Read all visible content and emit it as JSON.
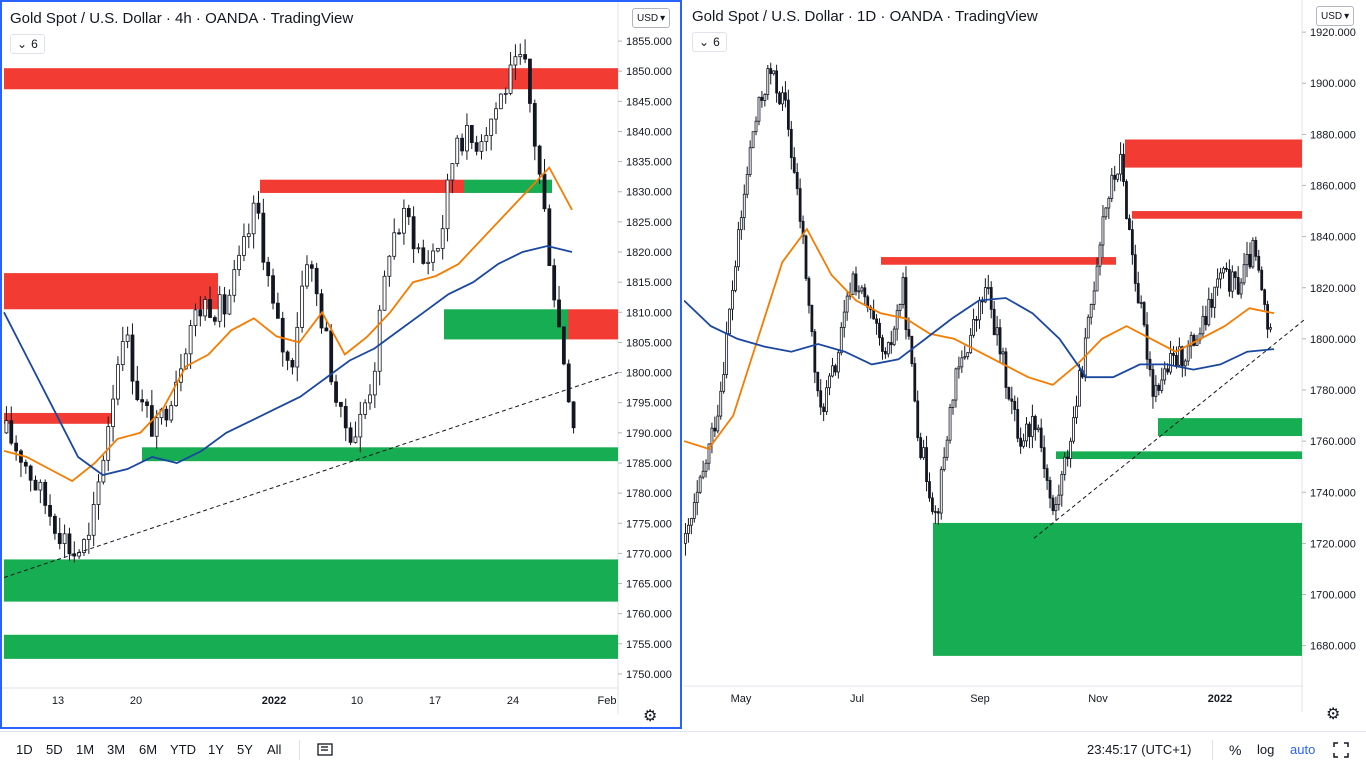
{
  "charts": [
    {
      "title": "Gold Spot / U.S. Dollar · 4h · OANDA · TradingView",
      "legend_badge": "6",
      "currency": "USD",
      "chart_data": {
        "type": "candlestick",
        "ylim": [
          1748,
          1857
        ],
        "y_ticks": [
          1750,
          1755,
          1760,
          1765,
          1770,
          1775,
          1780,
          1785,
          1790,
          1795,
          1800,
          1805,
          1810,
          1815,
          1820,
          1825,
          1830,
          1835,
          1840,
          1845,
          1850,
          1855
        ],
        "x_ticks": [
          "13",
          "20",
          "2022",
          "10",
          "17",
          "24",
          "Feb"
        ],
        "zones": [
          {
            "kind": "supply",
            "y0": 1847,
            "y1": 1850.5
          },
          {
            "kind": "supply",
            "y0": 1829.8,
            "y1": 1832
          },
          {
            "kind": "demand",
            "y0": 1829.8,
            "y1": 1832
          },
          {
            "kind": "supply",
            "y0": 1810.5,
            "y1": 1816.5
          },
          {
            "kind": "supply",
            "y0": 1805.5,
            "y1": 1810.5
          },
          {
            "kind": "demand",
            "y0": 1805.5,
            "y1": 1810.5
          },
          {
            "kind": "supply",
            "y0": 1791.5,
            "y1": 1793.3
          },
          {
            "kind": "demand",
            "y0": 1785.3,
            "y1": 1787.6
          },
          {
            "kind": "demand",
            "y0": 1762,
            "y1": 1769
          },
          {
            "kind": "demand",
            "y0": 1752.5,
            "y1": 1756.5
          }
        ],
        "lines": [
          {
            "name": "",
            "color": "#f57c00",
            "values": [
              1787,
              1786,
              1784,
              1782,
              1785,
              1789,
              1790,
              1794,
              1801,
              1803,
              1807,
              1809,
              1806,
              1805,
              1810,
              1803,
              1806,
              1810,
              1815,
              1816,
              1818,
              1822,
              1826,
              1830,
              1834,
              1827
            ]
          },
          {
            "name": "",
            "color": "#1a47a0",
            "values": [
              1810,
              1802,
              1794,
              1786,
              1783,
              1784,
              1786,
              1785,
              1787,
              1790,
              1792,
              1794,
              1796,
              1799,
              1802,
              1804,
              1807,
              1810,
              1813,
              1815,
              1818,
              1820,
              1821,
              1820
            ]
          }
        ]
      }
    },
    {
      "title": "Gold Spot / U.S. Dollar · 1D · OANDA · TradingView",
      "legend_badge": "6",
      "currency": "USD",
      "chart_data": {
        "type": "candlestick",
        "ylim": [
          1665,
          1922
        ],
        "y_ticks": [
          1680,
          1700,
          1720,
          1740,
          1760,
          1780,
          1800,
          1820,
          1840,
          1860,
          1880,
          1900,
          1920
        ],
        "x_ticks": [
          "May",
          "Jul",
          "Sep",
          "Nov",
          "2022"
        ],
        "zones": [
          {
            "kind": "supply",
            "y0": 1867,
            "y1": 1878
          },
          {
            "kind": "supply",
            "y0": 1847,
            "y1": 1850
          },
          {
            "kind": "supply",
            "y0": 1829,
            "y1": 1832
          },
          {
            "kind": "demand",
            "y0": 1762,
            "y1": 1769
          },
          {
            "kind": "demand",
            "y0": 1753,
            "y1": 1756
          },
          {
            "kind": "demand",
            "y0": 1676,
            "y1": 1728
          }
        ],
        "lines": [
          {
            "name": "",
            "color": "#f57c00",
            "values": [
              1760,
              1757,
              1770,
              1800,
              1830,
              1843,
              1825,
              1815,
              1810,
              1808,
              1802,
              1800,
              1795,
              1790,
              1785,
              1782,
              1790,
              1800,
              1805,
              1800,
              1795,
              1800,
              1805,
              1812,
              1810
            ]
          },
          {
            "name": "",
            "color": "#1a47a0",
            "values": [
              1815,
              1805,
              1800,
              1797,
              1795,
              1798,
              1795,
              1790,
              1792,
              1800,
              1808,
              1815,
              1816,
              1810,
              1800,
              1785,
              1785,
              1790,
              1790,
              1788,
              1790,
              1795,
              1796
            ]
          }
        ]
      }
    }
  ],
  "toolbar": {
    "ranges": [
      "1D",
      "5D",
      "1M",
      "3M",
      "6M",
      "YTD",
      "1Y",
      "5Y",
      "All"
    ],
    "clock": "23:45:17 (UTC+1)",
    "percent": "%",
    "log": "log",
    "auto": "auto"
  },
  "colors": {
    "supply": "#f23b33",
    "demand": "#17ad52",
    "up": "#ffffff",
    "down": "#131722",
    "accent": "#2962ff"
  },
  "icons": [
    "chevron-down-icon",
    "gear-icon",
    "compare-icon",
    "fullscreen-icon"
  ]
}
